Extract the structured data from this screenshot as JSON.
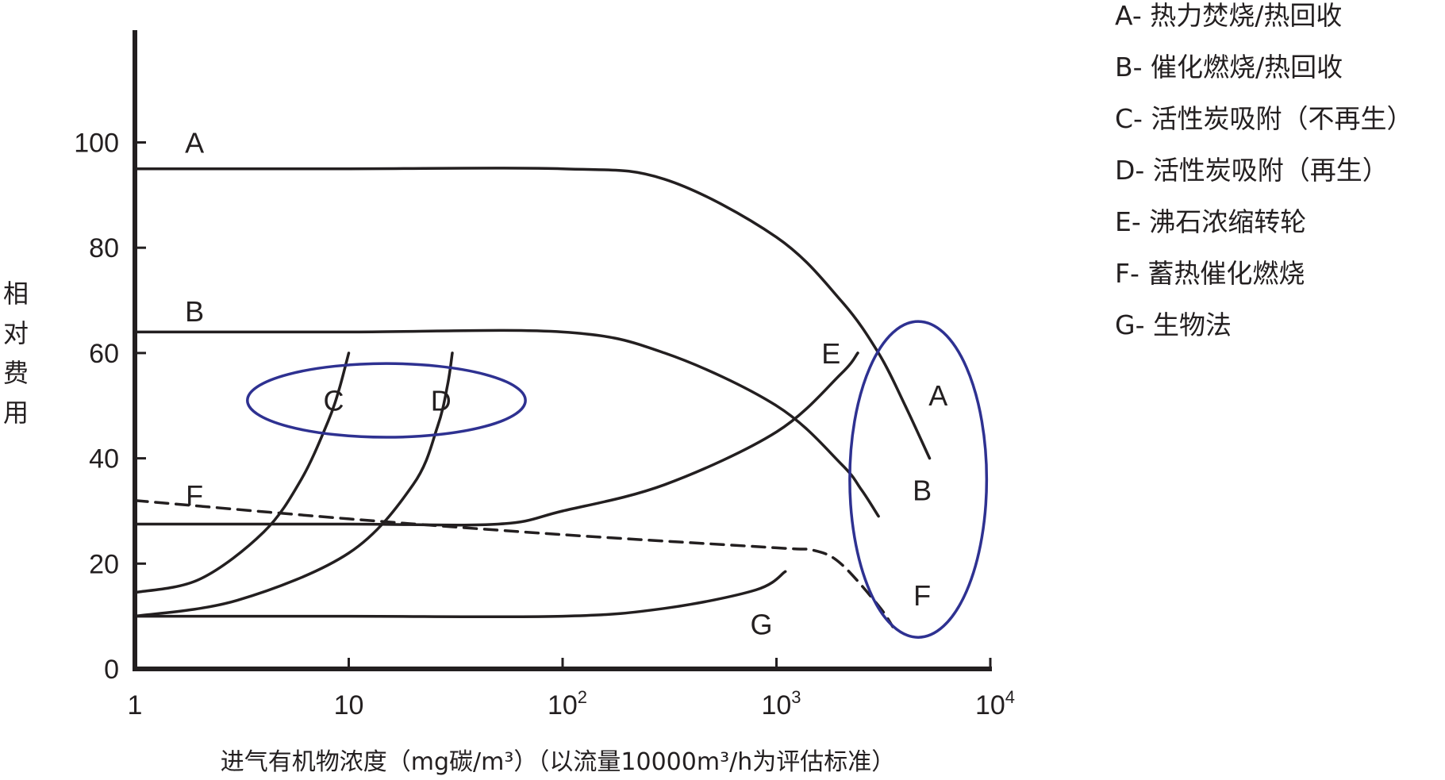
{
  "chart_data": {
    "type": "line",
    "title": "",
    "xlabel": "进气有机物浓度（mg碳/m³）（以流量10000m³/h为评估标准）",
    "ylabel": "相对费用",
    "x_scale": "log",
    "xlim": [
      1,
      10000
    ],
    "ylim": [
      0,
      120
    ],
    "x_ticks": [
      1,
      10,
      100,
      1000,
      10000
    ],
    "x_tick_labels": [
      {
        "base": "1",
        "sup": ""
      },
      {
        "base": "10",
        "sup": ""
      },
      {
        "base": "10",
        "sup": "2"
      },
      {
        "base": "10",
        "sup": "3"
      },
      {
        "base": "10",
        "sup": "4"
      }
    ],
    "y_ticks": [
      0,
      20,
      40,
      60,
      80,
      100
    ],
    "y_tick_labels": [
      "0",
      "20",
      "40",
      "60",
      "80",
      "100"
    ],
    "grid": false,
    "legend_position": "top-right",
    "legend": [
      "A- 热力焚烧/热回收",
      "B- 催化燃烧/热回收",
      "C- 活性炭吸附（不再生）",
      "D- 活性炭吸附（再生）",
      "E- 沸石浓缩转轮",
      "F- 蓄热催化燃烧",
      "G- 生物法"
    ],
    "series": [
      {
        "name": "A",
        "style": "solid",
        "x": [
          1,
          10,
          100,
          300,
          1000,
          2000,
          3000,
          4000,
          5200
        ],
        "y": [
          95,
          95,
          95,
          93,
          82,
          70,
          60,
          50,
          40
        ]
      },
      {
        "name": "B",
        "style": "solid",
        "x": [
          1,
          10,
          100,
          300,
          1000,
          2000,
          2500,
          3000
        ],
        "y": [
          64,
          64,
          64,
          60,
          50,
          39,
          34,
          29
        ]
      },
      {
        "name": "C",
        "style": "solid",
        "x": [
          1,
          2,
          4,
          6,
          8,
          9,
          10
        ],
        "y": [
          14.5,
          17,
          26,
          36,
          47,
          53,
          60
        ]
      },
      {
        "name": "D",
        "style": "solid",
        "x": [
          1,
          3,
          10,
          20,
          26,
          29,
          30.5
        ],
        "y": [
          10,
          13,
          22,
          35,
          46,
          54,
          60
        ]
      },
      {
        "name": "E",
        "style": "solid",
        "x": [
          1,
          10,
          50,
          100,
          300,
          1000,
          2000,
          2400
        ],
        "y": [
          27.5,
          27.5,
          27.5,
          30,
          35,
          45,
          56,
          60
        ]
      },
      {
        "name": "F",
        "style": "dashed",
        "x": [
          1,
          10,
          100,
          1000,
          1500,
          2000,
          3000,
          3500
        ],
        "y": [
          32,
          28.5,
          25.5,
          23,
          22.5,
          20,
          12,
          8
        ]
      },
      {
        "name": "G",
        "style": "solid",
        "x": [
          1,
          10,
          100,
          300,
          800,
          1100
        ],
        "y": [
          10,
          10,
          10,
          11.5,
          15,
          18.5
        ]
      }
    ],
    "curve_labels": [
      {
        "text": "A",
        "x": 1.9,
        "y": 100
      },
      {
        "text": "B",
        "x": 1.9,
        "y": 68
      },
      {
        "text": "C",
        "x": 8.5,
        "y": 51
      },
      {
        "text": "D",
        "x": 27,
        "y": 51
      },
      {
        "text": "E",
        "x": 1800,
        "y": 60
      },
      {
        "text": "F",
        "x": 1.9,
        "y": 33
      },
      {
        "text": "G",
        "x": 850,
        "y": 8.5
      },
      {
        "text": "A",
        "x": 5700,
        "y": 52
      },
      {
        "text": "B",
        "x": 4800,
        "y": 34
      },
      {
        "text": "F",
        "x": 4800,
        "y": 14
      }
    ],
    "highlight_ellipses": [
      {
        "label": "C-D",
        "cx": 15,
        "cy": 51,
        "rx_log": 0.65,
        "ry": 7
      },
      {
        "label": "A-B-F",
        "cx": 4600,
        "cy": 36,
        "rx_log": 0.32,
        "ry": 30
      }
    ],
    "colors": {
      "curve": "#231f20",
      "axis": "#231f20",
      "ellipse": "#2e3191"
    }
  }
}
